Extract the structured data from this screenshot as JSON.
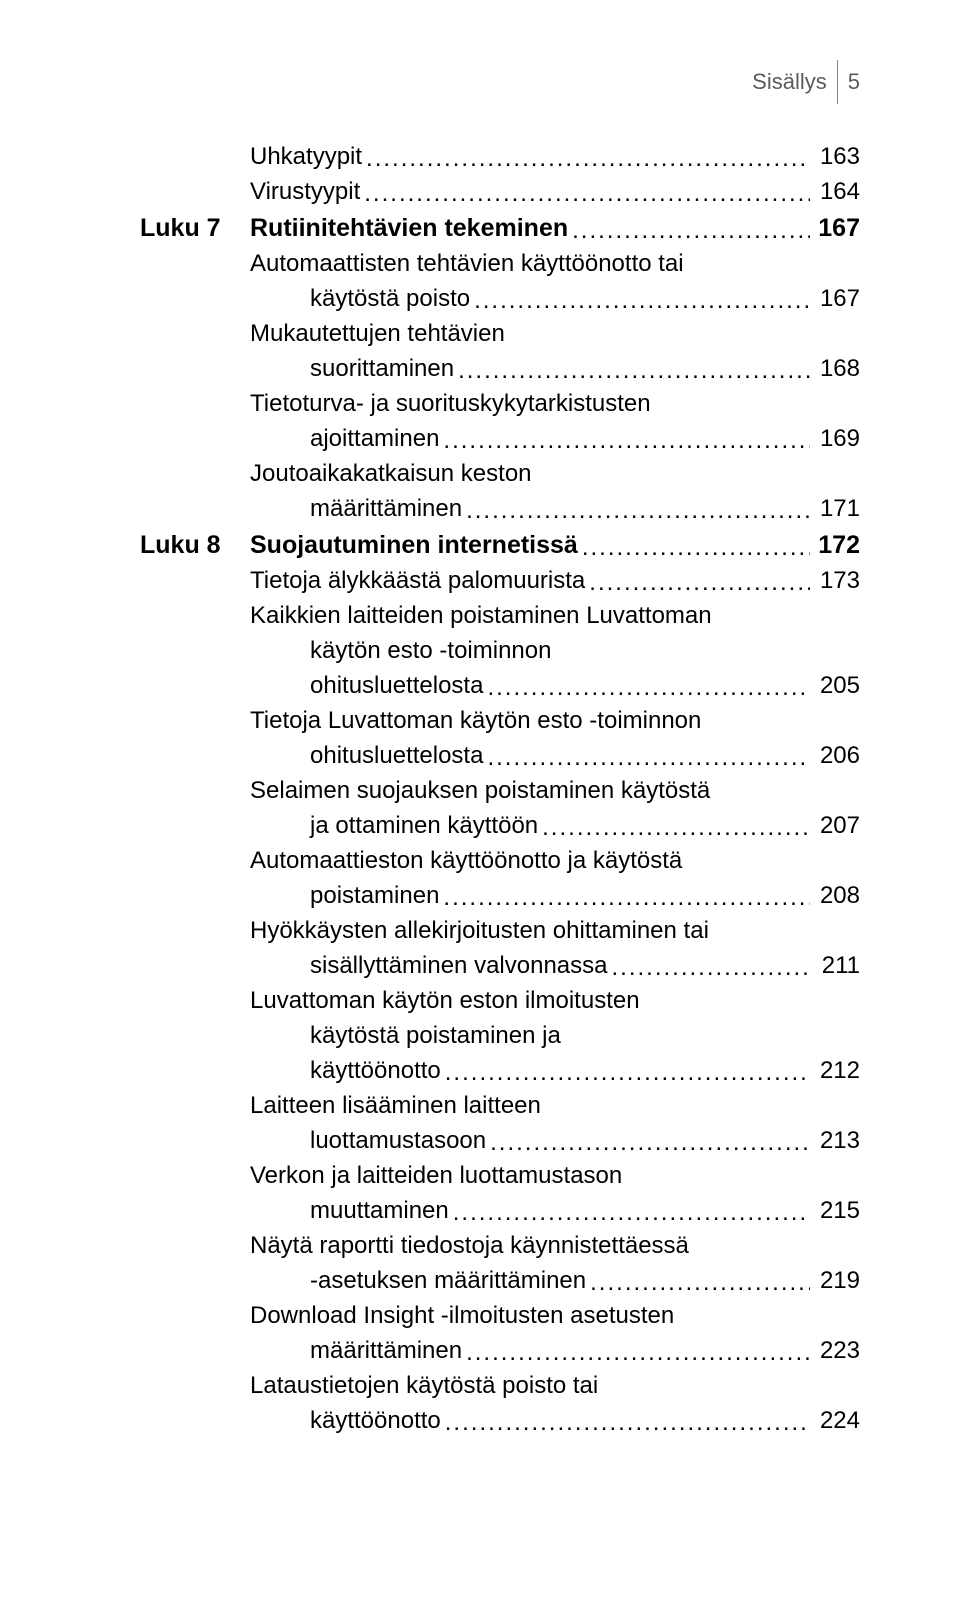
{
  "header": {
    "title": "Sisällys",
    "pagenum": "5"
  },
  "toc": [
    {
      "chapter": "",
      "lines": [
        {
          "text": "Uhkatyypit",
          "indent": 0
        }
      ],
      "page": "163",
      "bold": false
    },
    {
      "chapter": "",
      "lines": [
        {
          "text": "Virustyypit",
          "indent": 0
        }
      ],
      "page": "164",
      "bold": false
    },
    {
      "chapter": "Luku 7",
      "lines": [
        {
          "text": "Rutiinitehtävien tekeminen",
          "indent": 0
        }
      ],
      "page": "167",
      "bold": true
    },
    {
      "chapter": "",
      "lines": [
        {
          "text": "Automaattisten tehtävien käyttöönotto tai",
          "indent": 0
        },
        {
          "text": "käytöstä poisto",
          "indent": 1
        }
      ],
      "page": "167",
      "bold": false
    },
    {
      "chapter": "",
      "lines": [
        {
          "text": "Mukautettujen tehtävien",
          "indent": 0
        },
        {
          "text": "suorittaminen",
          "indent": 1
        }
      ],
      "page": "168",
      "bold": false
    },
    {
      "chapter": "",
      "lines": [
        {
          "text": "Tietoturva- ja suorituskykytarkistusten",
          "indent": 0
        },
        {
          "text": "ajoittaminen",
          "indent": 1
        }
      ],
      "page": "169",
      "bold": false
    },
    {
      "chapter": "",
      "lines": [
        {
          "text": "Joutoaikakatkaisun keston",
          "indent": 0
        },
        {
          "text": "määrittäminen",
          "indent": 1
        }
      ],
      "page": "171",
      "bold": false
    },
    {
      "chapter": "Luku 8",
      "lines": [
        {
          "text": "Suojautuminen internetissä",
          "indent": 0
        }
      ],
      "page": "172",
      "bold": true
    },
    {
      "chapter": "",
      "lines": [
        {
          "text": "Tietoja älykkäästä palomuurista",
          "indent": 0
        }
      ],
      "page": "173",
      "bold": false
    },
    {
      "chapter": "",
      "lines": [
        {
          "text": "Kaikkien laitteiden poistaminen Luvattoman",
          "indent": 0
        },
        {
          "text": "käytön esto -toiminnon",
          "indent": 1
        },
        {
          "text": "ohitusluettelosta",
          "indent": 1
        }
      ],
      "page": "205",
      "bold": false
    },
    {
      "chapter": "",
      "lines": [
        {
          "text": "Tietoja Luvattoman käytön esto -toiminnon",
          "indent": 0
        },
        {
          "text": "ohitusluettelosta",
          "indent": 1
        }
      ],
      "page": "206",
      "bold": false
    },
    {
      "chapter": "",
      "lines": [
        {
          "text": "Selaimen suojauksen poistaminen käytöstä",
          "indent": 0
        },
        {
          "text": "ja ottaminen käyttöön",
          "indent": 1
        }
      ],
      "page": "207",
      "bold": false
    },
    {
      "chapter": "",
      "lines": [
        {
          "text": "Automaattieston käyttöönotto ja käytöstä",
          "indent": 0
        },
        {
          "text": "poistaminen",
          "indent": 1
        }
      ],
      "page": "208",
      "bold": false
    },
    {
      "chapter": "",
      "lines": [
        {
          "text": "Hyökkäysten allekirjoitusten ohittaminen tai",
          "indent": 0
        },
        {
          "text": "sisällyttäminen valvonnassa",
          "indent": 1
        }
      ],
      "page": "211",
      "bold": false
    },
    {
      "chapter": "",
      "lines": [
        {
          "text": "Luvattoman käytön eston ilmoitusten",
          "indent": 0
        },
        {
          "text": "käytöstä poistaminen ja",
          "indent": 1
        },
        {
          "text": "käyttöönotto",
          "indent": 1
        }
      ],
      "page": "212",
      "bold": false
    },
    {
      "chapter": "",
      "lines": [
        {
          "text": "Laitteen lisääminen laitteen",
          "indent": 0
        },
        {
          "text": "luottamustasoon",
          "indent": 1
        }
      ],
      "page": "213",
      "bold": false
    },
    {
      "chapter": "",
      "lines": [
        {
          "text": "Verkon ja laitteiden luottamustason",
          "indent": 0
        },
        {
          "text": "muuttaminen",
          "indent": 1
        }
      ],
      "page": "215",
      "bold": false
    },
    {
      "chapter": "",
      "lines": [
        {
          "text": "Näytä raportti tiedostoja käynnistettäessä",
          "indent": 0
        },
        {
          "text": "-asetuksen määrittäminen",
          "indent": 1
        }
      ],
      "page": "219",
      "bold": false
    },
    {
      "chapter": "",
      "lines": [
        {
          "text": "Download Insight -ilmoitusten asetusten",
          "indent": 0
        },
        {
          "text": "määrittäminen",
          "indent": 1
        }
      ],
      "page": "223",
      "bold": false
    },
    {
      "chapter": "",
      "lines": [
        {
          "text": "Lataustietojen käytöstä poisto tai",
          "indent": 0
        },
        {
          "text": "käyttöönotto",
          "indent": 1
        }
      ],
      "page": "224",
      "bold": false
    }
  ]
}
